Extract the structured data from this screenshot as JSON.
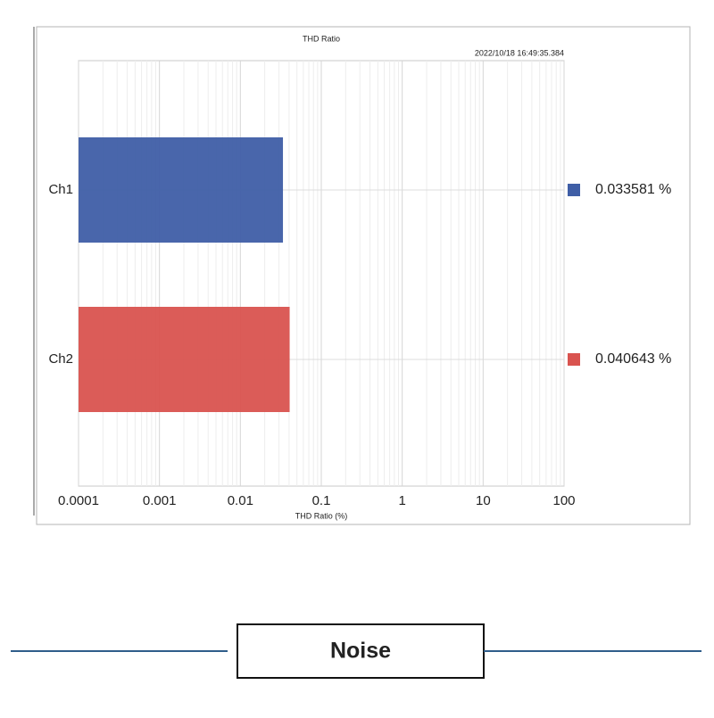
{
  "chart_data": {
    "type": "bar",
    "orientation": "horizontal",
    "title": "THD Ratio",
    "subtitle": "2022/10/18 16:49:35.384",
    "x_label": "THD Ratio (%)",
    "categories": [
      "Ch1",
      "Ch2"
    ],
    "values": [
      0.033581,
      0.040643
    ],
    "value_labels": [
      "0.033581 %",
      "0.040643 %"
    ],
    "colors": [
      "#3f5ea6",
      "#d9534f"
    ],
    "xlim": [
      0.0001,
      100
    ],
    "xticks": [
      0.0001,
      0.001,
      0.01,
      0.1,
      1,
      10,
      100
    ],
    "log_scale": true,
    "grid": true
  },
  "section": {
    "title": "Noise"
  }
}
